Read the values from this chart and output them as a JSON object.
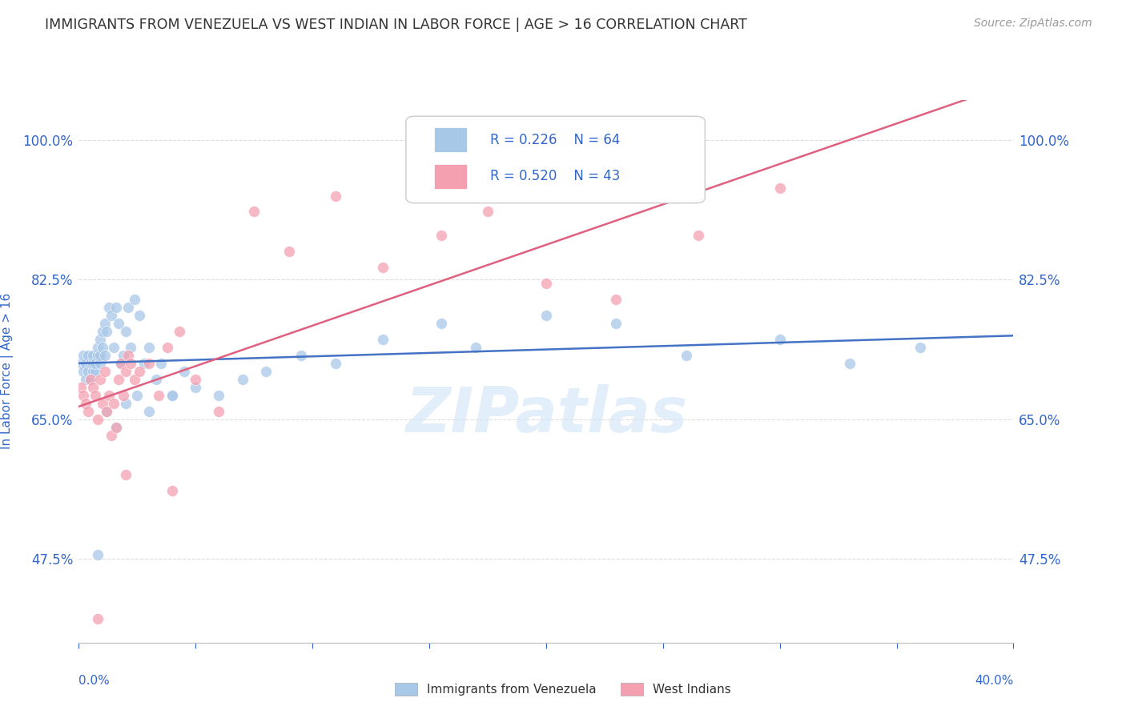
{
  "title": "IMMIGRANTS FROM VENEZUELA VS WEST INDIAN IN LABOR FORCE | AGE > 16 CORRELATION CHART",
  "source": "Source: ZipAtlas.com",
  "ylabel": "In Labor Force | Age > 16",
  "legend_R1": "0.226",
  "legend_N1": "64",
  "legend_R2": "0.520",
  "legend_N2": "43",
  "color_venezuela": "#a8c8e8",
  "color_westindian": "#f4a0b0",
  "color_line_venezuela": "#4472c4",
  "color_line_westindian": "#e06080",
  "color_axis_label": "#3366cc",
  "color_title": "#333333",
  "color_source": "#999999",
  "color_grid": "#dddddd",
  "watermark": "ZIPatlas",
  "xlim": [
    0.0,
    0.4
  ],
  "ylim": [
    0.37,
    1.05
  ],
  "ytick_positions": [
    0.475,
    0.65,
    0.825,
    1.0
  ],
  "ytick_labels": [
    "47.5%",
    "65.0%",
    "82.5%",
    "100.0%"
  ],
  "venezuela_x": [
    0.001,
    0.002,
    0.002,
    0.003,
    0.003,
    0.004,
    0.004,
    0.005,
    0.005,
    0.006,
    0.006,
    0.006,
    0.007,
    0.007,
    0.008,
    0.008,
    0.009,
    0.009,
    0.009,
    0.01,
    0.01,
    0.011,
    0.011,
    0.012,
    0.013,
    0.014,
    0.015,
    0.016,
    0.017,
    0.018,
    0.019,
    0.02,
    0.021,
    0.022,
    0.024,
    0.026,
    0.028,
    0.03,
    0.033,
    0.035,
    0.04,
    0.045,
    0.05,
    0.06,
    0.07,
    0.08,
    0.095,
    0.11,
    0.13,
    0.155,
    0.17,
    0.2,
    0.23,
    0.26,
    0.3,
    0.33,
    0.36,
    0.008,
    0.012,
    0.016,
    0.02,
    0.025,
    0.03,
    0.04
  ],
  "venezuela_y": [
    0.72,
    0.71,
    0.73,
    0.7,
    0.72,
    0.71,
    0.73,
    0.72,
    0.7,
    0.71,
    0.72,
    0.73,
    0.71,
    0.72,
    0.73,
    0.74,
    0.72,
    0.73,
    0.75,
    0.74,
    0.76,
    0.73,
    0.77,
    0.76,
    0.79,
    0.78,
    0.74,
    0.79,
    0.77,
    0.72,
    0.73,
    0.76,
    0.79,
    0.74,
    0.8,
    0.78,
    0.72,
    0.74,
    0.7,
    0.72,
    0.68,
    0.71,
    0.69,
    0.68,
    0.7,
    0.71,
    0.73,
    0.72,
    0.75,
    0.77,
    0.74,
    0.78,
    0.77,
    0.73,
    0.75,
    0.72,
    0.74,
    0.48,
    0.66,
    0.64,
    0.67,
    0.68,
    0.66,
    0.68
  ],
  "westindian_x": [
    0.001,
    0.002,
    0.003,
    0.004,
    0.005,
    0.006,
    0.007,
    0.008,
    0.009,
    0.01,
    0.011,
    0.012,
    0.013,
    0.014,
    0.015,
    0.016,
    0.017,
    0.018,
    0.019,
    0.02,
    0.021,
    0.022,
    0.024,
    0.026,
    0.03,
    0.034,
    0.038,
    0.043,
    0.05,
    0.06,
    0.075,
    0.09,
    0.11,
    0.13,
    0.155,
    0.175,
    0.2,
    0.23,
    0.265,
    0.3,
    0.04,
    0.02,
    0.008
  ],
  "westindian_y": [
    0.69,
    0.68,
    0.67,
    0.66,
    0.7,
    0.69,
    0.68,
    0.65,
    0.7,
    0.67,
    0.71,
    0.66,
    0.68,
    0.63,
    0.67,
    0.64,
    0.7,
    0.72,
    0.68,
    0.71,
    0.73,
    0.72,
    0.7,
    0.71,
    0.72,
    0.68,
    0.74,
    0.76,
    0.7,
    0.66,
    0.91,
    0.86,
    0.93,
    0.84,
    0.88,
    0.91,
    0.82,
    0.8,
    0.88,
    0.94,
    0.56,
    0.58,
    0.4
  ]
}
